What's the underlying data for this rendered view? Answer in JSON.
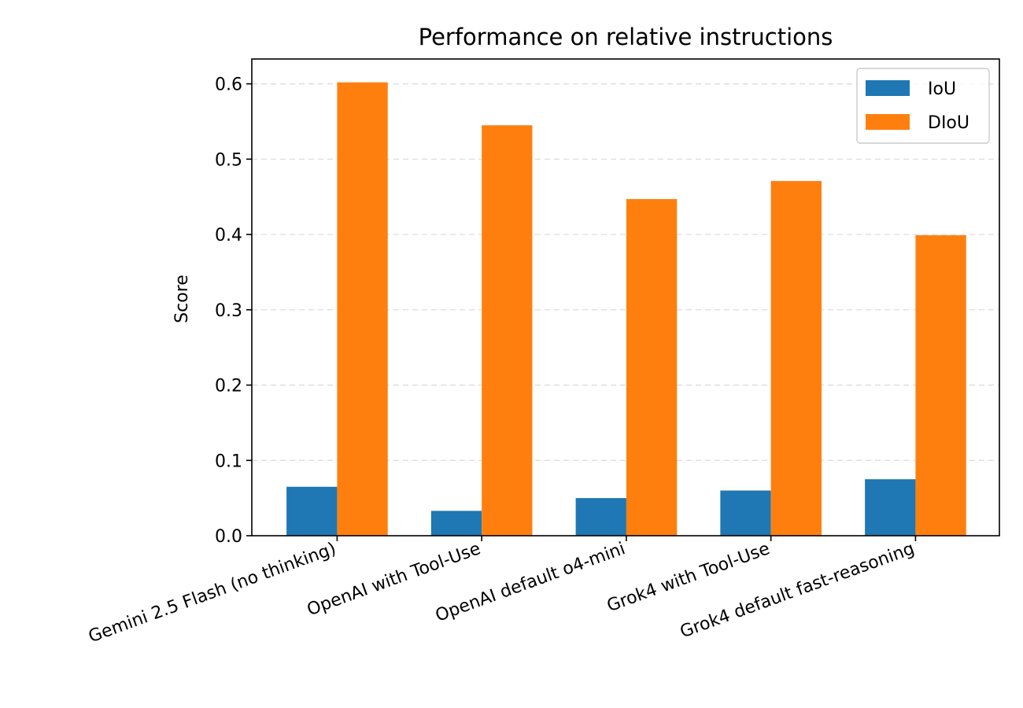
{
  "chart_data": {
    "type": "bar",
    "title": "Performance on relative instructions",
    "xlabel": "",
    "ylabel": "Score",
    "categories": [
      "Gemini 2.5 Flash (no thinking)",
      "OpenAI with Tool-Use",
      "OpenAI default o4-mini",
      "Grok4 with Tool-Use",
      "Grok4 default fast-reasoning"
    ],
    "series": [
      {
        "name": "IoU",
        "color": "#1f77b4",
        "values": [
          0.065,
          0.033,
          0.05,
          0.06,
          0.075
        ]
      },
      {
        "name": "DIoU",
        "color": "#ff7f0e",
        "values": [
          0.602,
          0.545,
          0.447,
          0.471,
          0.399
        ]
      }
    ],
    "ylim": [
      0,
      0.633
    ],
    "yticks": [
      "0.0",
      "0.1",
      "0.2",
      "0.3",
      "0.4",
      "0.5",
      "0.6"
    ],
    "grid": "y-dashed",
    "legend": "top-right"
  }
}
